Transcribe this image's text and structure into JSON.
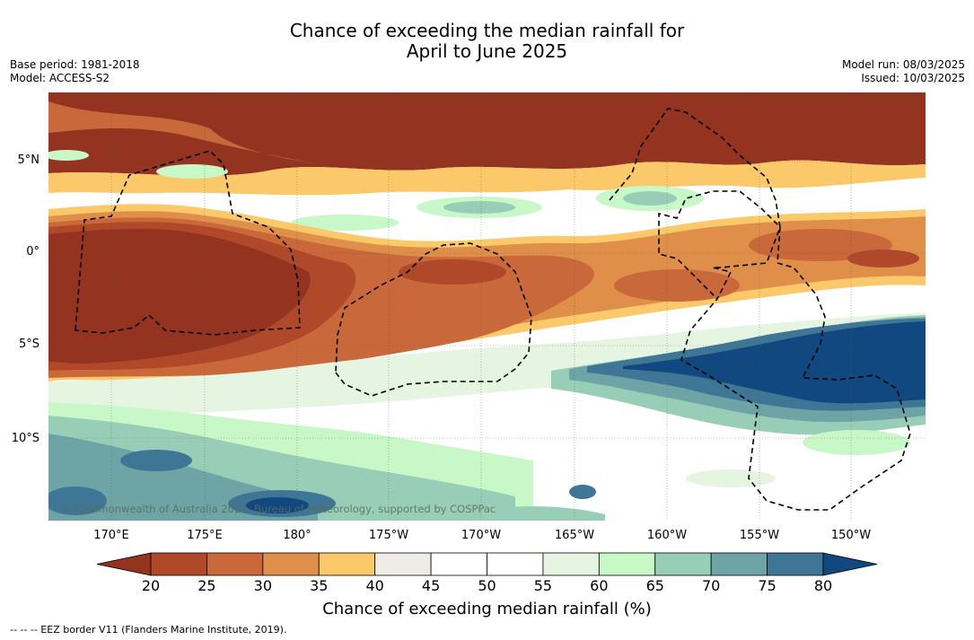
{
  "title": {
    "line1": "Chance of exceeding the median rainfall for",
    "line2": "April to June 2025"
  },
  "meta_left": {
    "base_period": "Base period: 1981-2018",
    "model": "Model: ACCESS-S2"
  },
  "meta_right": {
    "model_run": "Model run: 08/03/2025",
    "issued": "Issued: 10/03/2025"
  },
  "map": {
    "lat_labels": [
      "5°N",
      "0°",
      "5°S",
      "10°S"
    ],
    "lon_labels": [
      "170°E",
      "175°E",
      "180°",
      "175°W",
      "170°W",
      "165°W",
      "160°W",
      "155°W",
      "150°W"
    ],
    "copyright": "© Commonwealth of Australia 2025, Bureau of Meteorology, supported by COSPPac"
  },
  "colorbar": {
    "ticks": [
      "20",
      "25",
      "30",
      "35",
      "40",
      "45",
      "50",
      "55",
      "60",
      "65",
      "70",
      "75",
      "80"
    ],
    "colors": [
      "#943420",
      "#b0492a",
      "#c9683a",
      "#df8f4a",
      "#fbc86a",
      "#eeece6",
      "#ffffff",
      "#ffffff",
      "#e6f4e2",
      "#c8f8c8",
      "#98cdb8",
      "#6ea4a6",
      "#3f7595",
      "#11487f"
    ],
    "label": "Chance of exceeding median rainfall (%)"
  },
  "footer": "--  --  -- EEZ border V11 (Flanders Marine Institute, 2019)."
}
